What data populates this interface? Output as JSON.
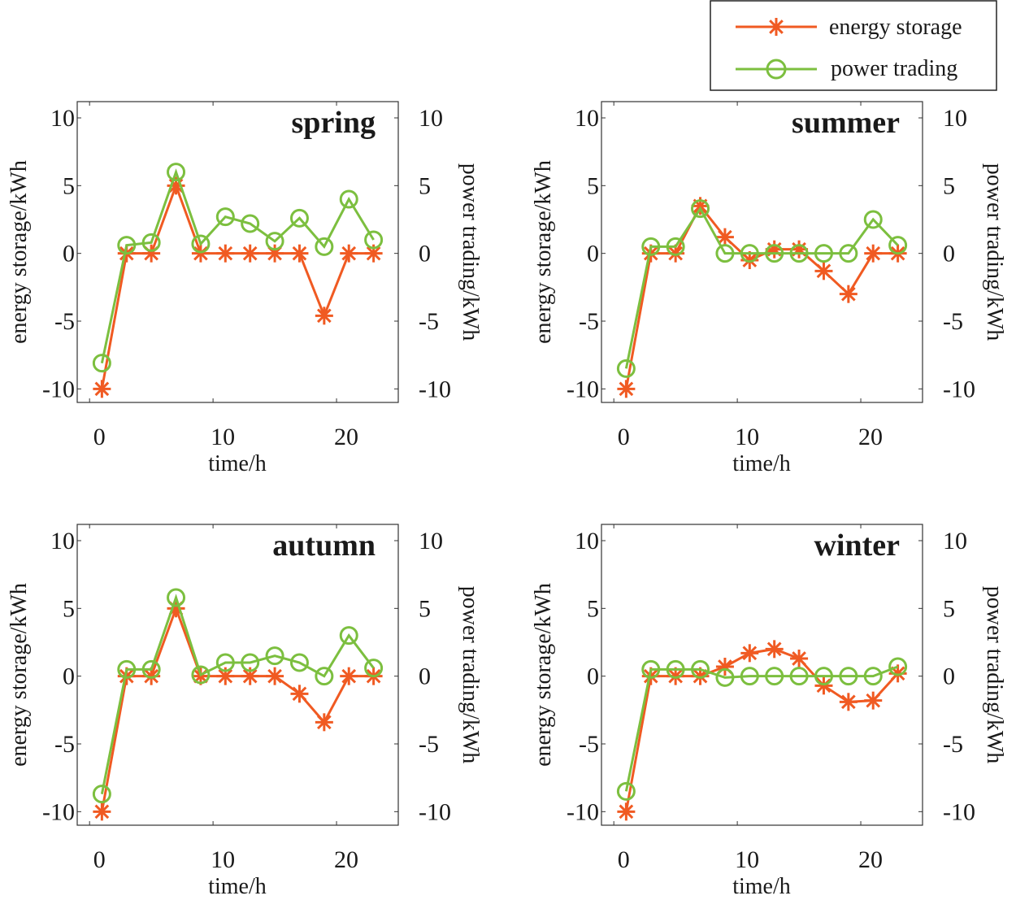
{
  "legend": {
    "position": "top-right",
    "items": [
      {
        "label": "energy storage",
        "color": "#f05a22",
        "marker": "asterisk"
      },
      {
        "label": "power trading",
        "color": "#7cbf3f",
        "marker": "circle"
      }
    ]
  },
  "chart_data": [
    {
      "type": "line",
      "title": "spring",
      "xlabel": "time/h",
      "ylabel": "energy storage/kWh",
      "ylabel_right": "power trading/kWh",
      "xticks": [
        "0",
        "10",
        "20"
      ],
      "yticks": [
        "10",
        "5",
        "0",
        "-5",
        "-10"
      ],
      "yticks_right": [
        "10",
        "5",
        "0",
        "-5",
        "-10"
      ],
      "x": [
        1,
        3,
        5,
        7,
        9,
        11,
        13,
        15,
        17,
        19,
        21,
        23
      ],
      "xlim": [
        -1,
        25
      ],
      "ylim": [
        -11,
        11.2
      ],
      "grid": false,
      "series": [
        {
          "name": "energy storage",
          "values": [
            -10,
            0,
            0,
            5,
            0,
            0,
            0,
            0,
            0,
            -4.6,
            0,
            0
          ]
        },
        {
          "name": "power trading",
          "values": [
            -8.1,
            0.6,
            0.8,
            6.0,
            0.7,
            2.7,
            2.2,
            0.9,
            2.6,
            0.5,
            4.0,
            1.0
          ]
        }
      ]
    },
    {
      "type": "line",
      "title": "summer",
      "xlabel": "time/h",
      "ylabel": "energy storage/kWh",
      "ylabel_right": "power trading/kWh",
      "xticks": [
        "0",
        "10",
        "20"
      ],
      "yticks": [
        "10",
        "5",
        "0",
        "-5",
        "-10"
      ],
      "yticks_right": [
        "10",
        "5",
        "0",
        "-5",
        "-10"
      ],
      "x": [
        1,
        3,
        5,
        7,
        9,
        11,
        13,
        15,
        17,
        19,
        21,
        23
      ],
      "xlim": [
        -1,
        25
      ],
      "ylim": [
        -11,
        11.2
      ],
      "grid": false,
      "series": [
        {
          "name": "energy storage",
          "values": [
            -10,
            0,
            0,
            3.5,
            1.2,
            -0.5,
            0.3,
            0.3,
            -1.3,
            -3.0,
            0,
            0
          ]
        },
        {
          "name": "power trading",
          "values": [
            -8.5,
            0.5,
            0.5,
            3.3,
            0,
            0,
            0,
            0,
            0,
            0,
            2.5,
            0.6
          ]
        }
      ]
    },
    {
      "type": "line",
      "title": "autumn",
      "xlabel": "time/h",
      "ylabel": "energy storage/kWh",
      "ylabel_right": "power trading/kWh",
      "xticks": [
        "0",
        "10",
        "20"
      ],
      "yticks": [
        "10",
        "5",
        "0",
        "-5",
        "-10"
      ],
      "yticks_right": [
        "10",
        "5",
        "0",
        "-5",
        "-10"
      ],
      "x": [
        1,
        3,
        5,
        7,
        9,
        11,
        13,
        15,
        17,
        19,
        21,
        23
      ],
      "xlim": [
        -1,
        25
      ],
      "ylim": [
        -11,
        11.2
      ],
      "grid": false,
      "series": [
        {
          "name": "energy storage",
          "values": [
            -10,
            0,
            0,
            5,
            0,
            0,
            0,
            0,
            -1.3,
            -3.4,
            0,
            0
          ]
        },
        {
          "name": "power trading",
          "values": [
            -8.7,
            0.5,
            0.5,
            5.8,
            0.1,
            1.0,
            1.0,
            1.5,
            1.0,
            0,
            3.0,
            0.6
          ]
        }
      ]
    },
    {
      "type": "line",
      "title": "winter",
      "xlabel": "time/h",
      "ylabel": "energy storage/kWh",
      "ylabel_right": "power trading/kWh",
      "xticks": [
        "0",
        "10",
        "20"
      ],
      "yticks": [
        "10",
        "5",
        "0",
        "-5",
        "-10"
      ],
      "yticks_right": [
        "10",
        "5",
        "0",
        "-5",
        "-10"
      ],
      "x": [
        1,
        3,
        5,
        7,
        9,
        11,
        13,
        15,
        17,
        19,
        21,
        23
      ],
      "xlim": [
        -1,
        25
      ],
      "ylim": [
        -11,
        11.2
      ],
      "grid": false,
      "series": [
        {
          "name": "energy storage",
          "values": [
            -10,
            0,
            0,
            0,
            0.7,
            1.7,
            2.0,
            1.3,
            -0.7,
            -1.9,
            -1.8,
            0.2
          ]
        },
        {
          "name": "power trading",
          "values": [
            -8.5,
            0.5,
            0.5,
            0.5,
            -0.1,
            0,
            0,
            0,
            0,
            0,
            0,
            0.7
          ]
        }
      ]
    }
  ]
}
